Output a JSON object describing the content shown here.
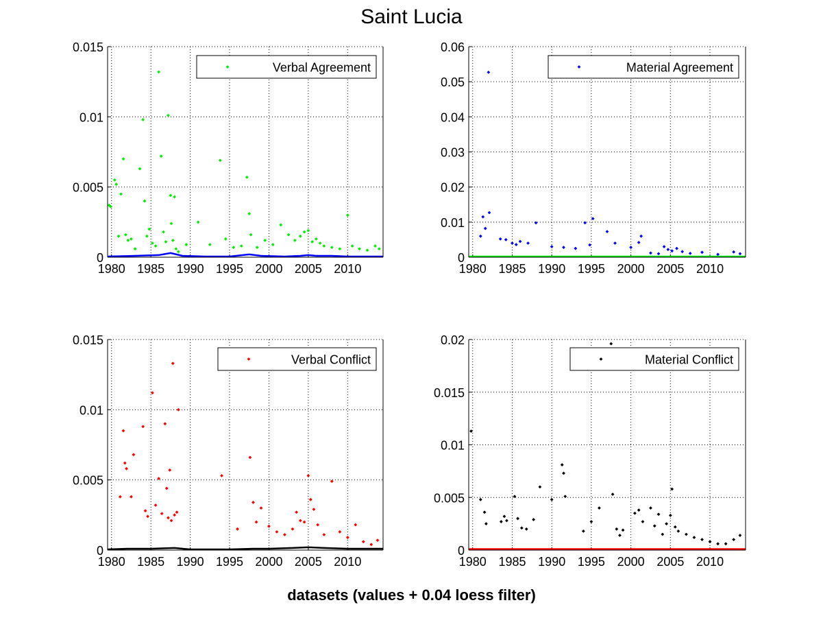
{
  "page": {
    "title": "Saint Lucia",
    "xlabel": "datasets (values + 0.04 loess filter)"
  },
  "chart_data": [
    {
      "type": "scatter",
      "title": "",
      "xlim": [
        1979.5,
        2014.5
      ],
      "ylim": [
        0,
        0.015
      ],
      "xticks": [
        1980,
        1985,
        1990,
        1995,
        2000,
        2005,
        2010
      ],
      "yticks": [
        0,
        0.005,
        0.01,
        0.015
      ],
      "ytick_labels": [
        "0",
        "0.005",
        "0.01",
        "0.015"
      ],
      "grid": true,
      "legend": "top-right",
      "series": [
        {
          "name": "Verbal Agreement",
          "color": "#00ee00",
          "marker": "point",
          "x": [
            1979.7,
            1979.9,
            1980.4,
            1980.6,
            1980.9,
            1981.2,
            1981.5,
            1981.8,
            1982.1,
            1982.5,
            1983.0,
            1983.6,
            1984.0,
            1984.2,
            1984.5,
            1984.8,
            1985.2,
            1985.6,
            1986.0,
            1986.3,
            1986.6,
            1986.9,
            1987.2,
            1987.5,
            1987.6,
            1987.8,
            1988.0,
            1988.2,
            1988.5,
            1989.5,
            1991.0,
            1992.5,
            1993.8,
            1994.5,
            1995.5,
            1996.5,
            1997.2,
            1997.5,
            1997.7,
            1998.5,
            1999.5,
            2000.5,
            2001.5,
            2002.5,
            2003.3,
            2004.0,
            2004.5,
            2005.0,
            2005.5,
            2006.0,
            2006.5,
            2007.0,
            2008.0,
            2009.0,
            2010.0,
            2010.6,
            2011.5,
            2012.5,
            2013.5,
            2014.0
          ],
          "y": [
            0.0037,
            0.0036,
            0.0055,
            0.0052,
            0.0015,
            0.0045,
            0.007,
            0.0016,
            0.0012,
            0.0013,
            0.0006,
            0.0063,
            0.0098,
            0.004,
            0.0015,
            0.002,
            0.001,
            0.0008,
            0.0132,
            0.0072,
            0.0018,
            0.0011,
            0.0101,
            0.0044,
            0.0024,
            0.0012,
            0.0043,
            0.0006,
            0.0004,
            0.0009,
            0.0025,
            0.0009,
            0.0069,
            0.0013,
            0.0007,
            0.0008,
            0.0057,
            0.0031,
            0.0016,
            0.0007,
            0.0012,
            0.0009,
            0.0023,
            0.0016,
            0.0012,
            0.0015,
            0.0018,
            0.0019,
            0.0011,
            0.0013,
            0.001,
            0.0008,
            0.0007,
            0.0006,
            0.003,
            0.0008,
            0.0006,
            0.0005,
            0.0008,
            0.0006
          ],
          "trend": {
            "color": "#0000ff",
            "x": [
              1979.5,
              1983,
              1986,
              1987.5,
              1989,
              1992,
              1995,
              1997.5,
              1999,
              2002,
              2004,
              2005,
              2006,
              2008,
              2010,
              2014.5
            ],
            "y": [
              5e-05,
              0.0001,
              0.00015,
              0.0003,
              0.0001,
              5e-05,
              5e-05,
              0.0002,
              0.0001,
              5e-05,
              0.0001,
              0.00015,
              0.0001,
              0.0001,
              5e-05,
              5e-05
            ]
          }
        }
      ]
    },
    {
      "type": "scatter",
      "title": "",
      "xlim": [
        1979.5,
        2014.5
      ],
      "ylim": [
        0,
        0.06
      ],
      "xticks": [
        1980,
        1985,
        1990,
        1995,
        2000,
        2005,
        2010
      ],
      "yticks": [
        0,
        0.01,
        0.02,
        0.03,
        0.04,
        0.05,
        0.06
      ],
      "ytick_labels": [
        "0",
        "0.01",
        "0.02",
        "0.03",
        "0.04",
        "0.05",
        "0.06"
      ],
      "grid": true,
      "legend": "top-right",
      "series": [
        {
          "name": "Material Agreement",
          "color": "#0000ff",
          "marker": "point",
          "x": [
            1981.0,
            1981.3,
            1981.6,
            1982.0,
            1982.1,
            1983.5,
            1984.2,
            1985.0,
            1985.5,
            1986.0,
            1987.0,
            1988.0,
            1990.0,
            1991.5,
            1993.0,
            1994.2,
            1994.8,
            1995.2,
            1997.0,
            1998.0,
            2000.0,
            2001.0,
            2001.3,
            2002.5,
            2003.5,
            2004.2,
            2004.7,
            2005.2,
            2005.8,
            2006.5,
            2007.5,
            2009.0,
            2011.0,
            2013.0,
            2013.8
          ],
          "y": [
            0.006,
            0.0115,
            0.0082,
            0.0527,
            0.0127,
            0.0052,
            0.005,
            0.004,
            0.0036,
            0.0045,
            0.004,
            0.0098,
            0.003,
            0.0028,
            0.0025,
            0.0098,
            0.0035,
            0.011,
            0.0073,
            0.004,
            0.0028,
            0.0042,
            0.006,
            0.0012,
            0.001,
            0.003,
            0.0022,
            0.0018,
            0.0025,
            0.0016,
            0.0011,
            0.0014,
            0.0008,
            0.0015,
            0.001
          ],
          "trend": {
            "color": "#00ee00",
            "x": [
              1979.5,
              1985,
              1990,
              1995,
              2000,
              2005,
              2010,
              2014.5
            ],
            "y": [
              0.0002,
              0.0002,
              0.0002,
              0.0002,
              0.0002,
              0.0002,
              0.0002,
              0.0002
            ]
          }
        }
      ]
    },
    {
      "type": "scatter",
      "title": "",
      "xlim": [
        1979.5,
        2014.5
      ],
      "ylim": [
        0,
        0.015
      ],
      "xticks": [
        1980,
        1985,
        1990,
        1995,
        2000,
        2005,
        2010
      ],
      "yticks": [
        0,
        0.005,
        0.01,
        0.015
      ],
      "ytick_labels": [
        "0",
        "0.005",
        "0.01",
        "0.015"
      ],
      "grid": true,
      "legend": "top-right",
      "series": [
        {
          "name": "Verbal Conflict",
          "color": "#ff0000",
          "marker": "point",
          "x": [
            1981.1,
            1981.5,
            1981.7,
            1981.9,
            1982.5,
            1982.8,
            1984.0,
            1984.3,
            1984.6,
            1985.2,
            1985.6,
            1986.0,
            1986.4,
            1986.8,
            1987.0,
            1987.2,
            1987.4,
            1987.6,
            1987.8,
            1988.0,
            1988.3,
            1988.5,
            1994.0,
            1996.0,
            1997.6,
            1998.0,
            1998.4,
            1999.0,
            2000.0,
            2001.0,
            2002.0,
            2003.0,
            2003.5,
            2004.0,
            2004.5,
            2005.0,
            2005.3,
            2005.7,
            2006.2,
            2007.0,
            2008.0,
            2009.0,
            2010.0,
            2011.0,
            2012.0,
            2013.0,
            2013.8
          ],
          "y": [
            0.0038,
            0.0085,
            0.0062,
            0.0058,
            0.0038,
            0.0068,
            0.0088,
            0.0028,
            0.0024,
            0.0112,
            0.0032,
            0.0051,
            0.0026,
            0.009,
            0.0044,
            0.0023,
            0.0057,
            0.0021,
            0.0133,
            0.0025,
            0.0027,
            0.01,
            0.0053,
            0.0015,
            0.0066,
            0.0034,
            0.002,
            0.003,
            0.0017,
            0.0013,
            0.0011,
            0.0015,
            0.0027,
            0.0021,
            0.002,
            0.0053,
            0.0036,
            0.0029,
            0.0018,
            0.0011,
            0.0049,
            0.0013,
            0.0009,
            0.0018,
            0.0006,
            0.0004,
            0.0007
          ],
          "trend": {
            "color": "#000000",
            "x": [
              1979.5,
              1982,
              1985,
              1988,
              1990,
              1995,
              1998,
              2000,
              2003,
              2005,
              2007,
              2010,
              2014.5
            ],
            "y": [
              5e-05,
              0.0001,
              0.0001,
              0.00015,
              5e-05,
              5e-05,
              0.0001,
              0.0001,
              0.00015,
              0.0002,
              0.00015,
              0.0001,
              0.0001
            ]
          }
        }
      ]
    },
    {
      "type": "scatter",
      "title": "",
      "xlim": [
        1979.5,
        2014.5
      ],
      "ylim": [
        0,
        0.02
      ],
      "xticks": [
        1980,
        1985,
        1990,
        1995,
        2000,
        2005,
        2010
      ],
      "yticks": [
        0,
        0.005,
        0.01,
        0.015,
        0.02
      ],
      "ytick_labels": [
        "0",
        "0.005",
        "0.01",
        "0.015",
        "0.02"
      ],
      "grid": true,
      "legend": "top-right",
      "series": [
        {
          "name": "Material Conflict",
          "color": "#000000",
          "marker": "point",
          "x": [
            1979.8,
            1981.0,
            1981.5,
            1981.7,
            1983.6,
            1984.0,
            1984.3,
            1985.3,
            1985.7,
            1986.2,
            1986.8,
            1987.7,
            1988.5,
            1990.0,
            1991.3,
            1991.5,
            1991.7,
            1994.0,
            1995.0,
            1996.0,
            1997.5,
            1997.7,
            1998.2,
            1998.6,
            1999.0,
            2000.5,
            2001.0,
            2001.5,
            2002.5,
            2003.0,
            2003.5,
            2004.0,
            2004.5,
            2005.0,
            2005.2,
            2005.6,
            2006.0,
            2007.0,
            2008.0,
            2009.0,
            2010.0,
            2011.0,
            2012.0,
            2013.0,
            2013.8
          ],
          "y": [
            0.0113,
            0.0048,
            0.0036,
            0.0025,
            0.0027,
            0.0032,
            0.0028,
            0.0051,
            0.003,
            0.0021,
            0.002,
            0.0029,
            0.006,
            0.0048,
            0.0081,
            0.0073,
            0.0051,
            0.0018,
            0.0027,
            0.004,
            0.0196,
            0.0053,
            0.002,
            0.0014,
            0.0019,
            0.0035,
            0.0038,
            0.0027,
            0.004,
            0.0023,
            0.0034,
            0.0015,
            0.0025,
            0.0033,
            0.0058,
            0.0022,
            0.0018,
            0.0015,
            0.0012,
            0.001,
            0.0008,
            0.0006,
            0.0006,
            0.001,
            0.0014
          ],
          "trend": {
            "color": "#ff0000",
            "x": [
              1979.5,
              1985,
              1990,
              1995,
              2000,
              2005,
              2010,
              2014.5
            ],
            "y": [
              0.0001,
              0.0001,
              0.0001,
              0.0001,
              0.0001,
              0.0001,
              0.0001,
              0.0001
            ]
          }
        }
      ]
    }
  ]
}
